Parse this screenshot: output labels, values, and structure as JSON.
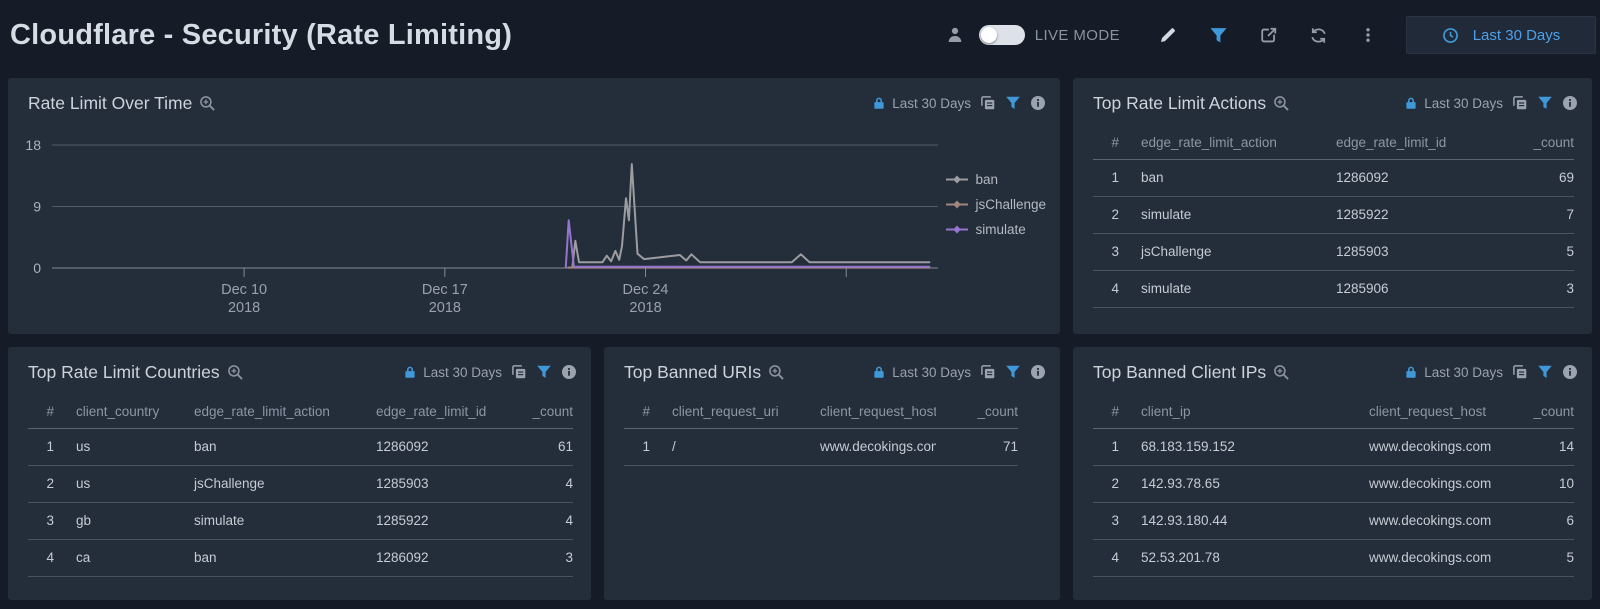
{
  "topbar": {
    "title": "Cloudflare - Security (Rate Limiting)",
    "live_mode_label": "LIVE MODE",
    "time_range_label": "Last 30 Days"
  },
  "panel_header": {
    "time_range_label": "Last 30 Days"
  },
  "panels": {
    "rate_limit_over_time": {
      "title": "Rate Limit Over Time"
    },
    "top_rate_limit_actions": {
      "title": "Top Rate Limit Actions",
      "table": {
        "columns": [
          "#",
          "edge_rate_limit_action",
          "edge_rate_limit_id",
          "_count"
        ],
        "aligns": [
          "right",
          "left",
          "left",
          "right"
        ],
        "rows": [
          [
            "1",
            "ban",
            "1286092",
            "69"
          ],
          [
            "2",
            "simulate",
            "1285922",
            "7"
          ],
          [
            "3",
            "jsChallenge",
            "1285903",
            "5"
          ],
          [
            "4",
            "simulate",
            "1285906",
            "3"
          ]
        ]
      }
    },
    "top_rate_limit_countries": {
      "title": "Top Rate Limit Countries",
      "table": {
        "columns": [
          "#",
          "client_country",
          "edge_rate_limit_action",
          "edge_rate_limit_id",
          "_count"
        ],
        "aligns": [
          "right",
          "left",
          "left",
          "left",
          "right"
        ],
        "rows": [
          [
            "1",
            "us",
            "ban",
            "1286092",
            "61"
          ],
          [
            "2",
            "us",
            "jsChallenge",
            "1285903",
            "4"
          ],
          [
            "3",
            "gb",
            "simulate",
            "1285922",
            "4"
          ],
          [
            "4",
            "ca",
            "ban",
            "1286092",
            "3"
          ]
        ]
      }
    },
    "top_banned_uris": {
      "title": "Top Banned URIs",
      "table": {
        "columns": [
          "#",
          "client_request_uri",
          "client_request_host",
          "_count"
        ],
        "aligns": [
          "right",
          "left",
          "left",
          "right"
        ],
        "rows": [
          [
            "1",
            "/",
            "www.decokings.com",
            "71"
          ]
        ]
      }
    },
    "top_banned_client_ips": {
      "title": "Top Banned Client IPs",
      "table": {
        "columns": [
          "#",
          "client_ip",
          "client_request_host",
          "_count"
        ],
        "aligns": [
          "right",
          "left",
          "left",
          "right"
        ],
        "rows": [
          [
            "1",
            "68.183.159.152",
            "www.decokings.com",
            "14"
          ],
          [
            "2",
            "142.93.78.65",
            "www.decokings.com",
            "10"
          ],
          [
            "3",
            "142.93.180.44",
            "www.decokings.com",
            "6"
          ],
          [
            "4",
            "52.53.201.78",
            "www.decokings.com",
            "5"
          ]
        ]
      }
    }
  },
  "chart_data": {
    "type": "line",
    "title": "Rate Limit Over Time",
    "ylim": [
      0,
      18
    ],
    "y_ticks": [
      0,
      9,
      18
    ],
    "x_unit": "days (offset from Dec 3 2018)",
    "x_range": [
      0.3,
      31.2
    ],
    "grid": true,
    "legend_position": "right",
    "x_ticks": [
      {
        "day": 7,
        "label": "Dec 10",
        "sublabel": "2018"
      },
      {
        "day": 14,
        "label": "Dec 17",
        "sublabel": "2018"
      },
      {
        "day": 21,
        "label": "Dec 24",
        "sublabel": "2018"
      },
      {
        "day": 28,
        "label": "",
        "sublabel": ""
      }
    ],
    "series": [
      {
        "name": "ban",
        "color": "#9c9ca1",
        "points": [
          [
            18.45,
            0.15
          ],
          [
            18.55,
            4.0
          ],
          [
            18.68,
            0.85
          ],
          [
            19.5,
            0.85
          ],
          [
            19.65,
            1.8
          ],
          [
            19.8,
            1.0
          ],
          [
            19.95,
            2.5
          ],
          [
            20.08,
            1.2
          ],
          [
            20.18,
            3.2
          ],
          [
            20.32,
            10.2
          ],
          [
            20.42,
            7.0
          ],
          [
            20.52,
            15.2
          ],
          [
            20.72,
            2.1
          ],
          [
            20.95,
            1.3
          ],
          [
            22.2,
            1.9
          ],
          [
            22.42,
            1.1
          ],
          [
            22.6,
            2.0
          ],
          [
            22.9,
            0.85
          ],
          [
            26.1,
            0.85
          ],
          [
            26.42,
            2.0
          ],
          [
            26.72,
            0.85
          ],
          [
            30.9,
            0.85
          ]
        ]
      },
      {
        "name": "jsChallenge",
        "color": "#a1887f",
        "points": [
          [
            18.3,
            0.06
          ],
          [
            30.9,
            0.06
          ]
        ]
      },
      {
        "name": "simulate",
        "color": "#9575cd",
        "points": [
          [
            18.22,
            0.1
          ],
          [
            18.32,
            7.0
          ],
          [
            18.5,
            0.18
          ],
          [
            30.9,
            0.18
          ]
        ]
      }
    ]
  },
  "colors": {
    "accent_blue": "#3f98d7",
    "link_blue": "#4da0e8",
    "panel_bg": "#242d3a",
    "page_bg": "#151b27"
  }
}
